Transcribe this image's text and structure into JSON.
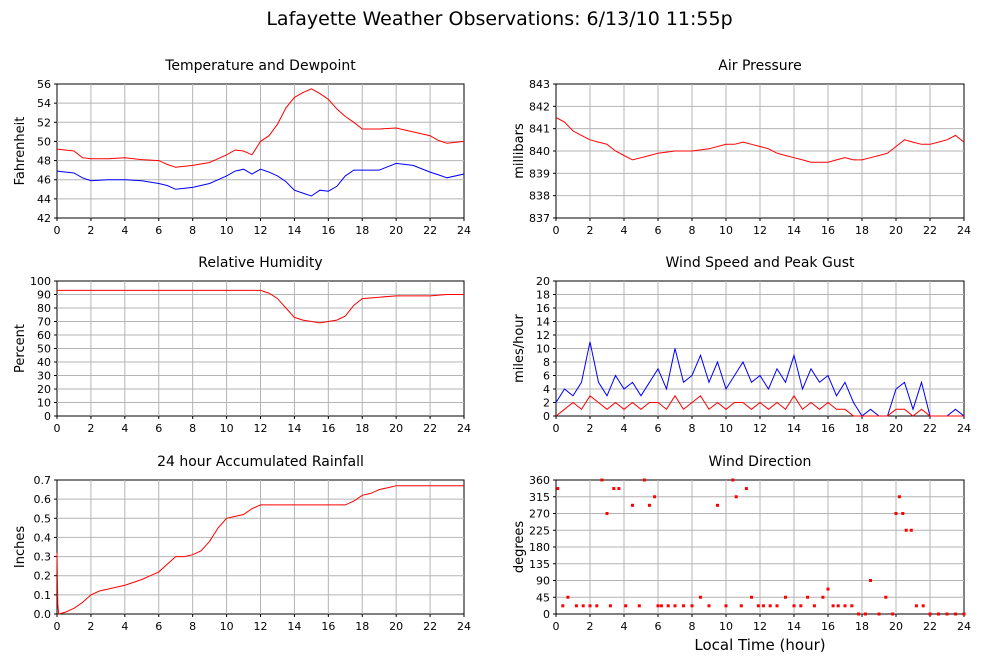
{
  "title": "Lafayette Weather Observations: 6/13/10 11:55p",
  "xlabel": "Local Time (hour)",
  "chart_data": [
    {
      "type": "line",
      "title": "Temperature and Dewpoint",
      "ylabel": "Fahrenheit",
      "xlim": [
        0,
        24
      ],
      "xticks": [
        0,
        2,
        4,
        6,
        8,
        10,
        12,
        14,
        16,
        18,
        20,
        22,
        24
      ],
      "ylim": [
        42,
        56
      ],
      "yticks": [
        42,
        44,
        46,
        48,
        50,
        52,
        54,
        56
      ],
      "grid": true,
      "series": [
        {
          "color": "#ff0000",
          "x": [
            0,
            1,
            1.5,
            2,
            3,
            4,
            5,
            6,
            6.5,
            7,
            8,
            9,
            9.5,
            10,
            10.5,
            11,
            11.5,
            12,
            12.5,
            13,
            13.5,
            14,
            14.5,
            15,
            15.5,
            16,
            16.5,
            17,
            17.5,
            18,
            19,
            20,
            21,
            22,
            22.5,
            23,
            24
          ],
          "y": [
            49.2,
            49.0,
            48.3,
            48.2,
            48.2,
            48.3,
            48.1,
            48.0,
            47.6,
            47.3,
            47.5,
            47.8,
            48.2,
            48.6,
            49.1,
            49.0,
            48.6,
            50.0,
            50.6,
            51.8,
            53.5,
            54.6,
            55.1,
            55.5,
            55.0,
            54.4,
            53.4,
            52.6,
            52.0,
            51.3,
            51.3,
            51.4,
            51.0,
            50.6,
            50.1,
            49.8,
            50.0
          ]
        },
        {
          "color": "#0000ff",
          "x": [
            0,
            1,
            1.5,
            2,
            3,
            4,
            5,
            6,
            6.5,
            7,
            8,
            9,
            9.5,
            10,
            10.5,
            11,
            11.5,
            12,
            12.5,
            13,
            13.5,
            14,
            14.5,
            15,
            15.5,
            16,
            16.5,
            17,
            17.5,
            18,
            19,
            20,
            21,
            22,
            22.5,
            23,
            24
          ],
          "y": [
            46.9,
            46.7,
            46.2,
            45.9,
            46.0,
            46.0,
            45.9,
            45.6,
            45.4,
            45.0,
            45.2,
            45.6,
            46.0,
            46.4,
            46.9,
            47.1,
            46.6,
            47.1,
            46.8,
            46.4,
            45.8,
            44.9,
            44.6,
            44.3,
            44.9,
            44.8,
            45.3,
            46.4,
            47.0,
            47.0,
            47.0,
            47.7,
            47.5,
            46.8,
            46.5,
            46.2,
            46.6
          ]
        }
      ]
    },
    {
      "type": "line",
      "title": "Air Pressure",
      "ylabel": "millibars",
      "xlim": [
        0,
        24
      ],
      "xticks": [
        0,
        2,
        4,
        6,
        8,
        10,
        12,
        14,
        16,
        18,
        20,
        22,
        24
      ],
      "ylim": [
        837,
        843
      ],
      "yticks": [
        837,
        838,
        839,
        840,
        841,
        842,
        843
      ],
      "grid": true,
      "series": [
        {
          "color": "#ff0000",
          "x": [
            0,
            0.5,
            1,
            1.5,
            2,
            2.5,
            3,
            3.5,
            4,
            4.5,
            5,
            5.5,
            6,
            7,
            8,
            9,
            10,
            10.5,
            11,
            11.5,
            12,
            12.5,
            13,
            13.5,
            14,
            14.5,
            15,
            15.5,
            16,
            16.5,
            17,
            17.5,
            18,
            18.5,
            19,
            19.5,
            20,
            20.5,
            21,
            21.5,
            22,
            22.5,
            23,
            23.5,
            24
          ],
          "y": [
            841.5,
            841.3,
            840.9,
            840.7,
            840.5,
            840.4,
            840.3,
            840.0,
            839.8,
            839.6,
            839.7,
            839.8,
            839.9,
            840.0,
            840.0,
            840.1,
            840.3,
            840.3,
            840.4,
            840.3,
            840.2,
            840.1,
            839.9,
            839.8,
            839.7,
            839.6,
            839.5,
            839.5,
            839.5,
            839.6,
            839.7,
            839.6,
            839.6,
            839.7,
            839.8,
            839.9,
            840.2,
            840.5,
            840.4,
            840.3,
            840.3,
            840.4,
            840.5,
            840.7,
            840.4
          ]
        }
      ]
    },
    {
      "type": "line",
      "title": "Relative Humidity",
      "ylabel": "Percent",
      "xlim": [
        0,
        24
      ],
      "xticks": [
        0,
        2,
        4,
        6,
        8,
        10,
        12,
        14,
        16,
        18,
        20,
        22,
        24
      ],
      "ylim": [
        0,
        100
      ],
      "yticks": [
        0,
        10,
        20,
        30,
        40,
        50,
        60,
        70,
        80,
        90,
        100
      ],
      "grid": true,
      "series": [
        {
          "color": "#ff0000",
          "x": [
            0,
            2,
            4,
            6,
            7,
            8,
            9,
            10,
            11,
            12,
            12.5,
            13,
            13.5,
            14,
            14.5,
            15,
            15.5,
            16,
            16.5,
            17,
            17.5,
            18,
            19,
            20,
            21,
            22,
            23,
            24
          ],
          "y": [
            93,
            93,
            93,
            93,
            93,
            93,
            93,
            93,
            93,
            93,
            91,
            87,
            80,
            73,
            71,
            70,
            69,
            70,
            71,
            74,
            82,
            87,
            88,
            89,
            89,
            89,
            90,
            90
          ]
        }
      ]
    },
    {
      "type": "line",
      "title": "Wind Speed and Peak Gust",
      "ylabel": "miles/hour",
      "xlim": [
        0,
        24
      ],
      "xticks": [
        0,
        2,
        4,
        6,
        8,
        10,
        12,
        14,
        16,
        18,
        20,
        22,
        24
      ],
      "ylim": [
        0,
        20
      ],
      "yticks": [
        0,
        2,
        4,
        6,
        8,
        10,
        12,
        14,
        16,
        18,
        20
      ],
      "grid": true,
      "series": [
        {
          "color": "#0000ff",
          "x": [
            0,
            0.5,
            1,
            1.5,
            2,
            2.5,
            3,
            3.5,
            4,
            4.5,
            5,
            5.5,
            6,
            6.5,
            7,
            7.5,
            8,
            8.5,
            9,
            9.5,
            10,
            10.5,
            11,
            11.5,
            12,
            12.5,
            13,
            13.5,
            14,
            14.5,
            15,
            15.5,
            16,
            16.5,
            17,
            17.5,
            18,
            18.5,
            19,
            19.5,
            20,
            20.5,
            21,
            21.5,
            22,
            22.5,
            23,
            23.5,
            24
          ],
          "y": [
            2,
            4,
            3,
            5,
            11,
            5,
            3,
            6,
            4,
            5,
            3,
            5,
            7,
            4,
            10,
            5,
            6,
            9,
            5,
            8,
            4,
            6,
            8,
            5,
            6,
            4,
            7,
            5,
            9,
            4,
            7,
            5,
            6,
            3,
            5,
            2,
            0,
            1,
            0,
            0,
            4,
            5,
            1,
            5,
            0,
            0,
            0,
            1,
            0
          ]
        },
        {
          "color": "#ff0000",
          "x": [
            0,
            0.5,
            1,
            1.5,
            2,
            2.5,
            3,
            3.5,
            4,
            4.5,
            5,
            5.5,
            6,
            6.5,
            7,
            7.5,
            8,
            8.5,
            9,
            9.5,
            10,
            10.5,
            11,
            11.5,
            12,
            12.5,
            13,
            13.5,
            14,
            14.5,
            15,
            15.5,
            16,
            16.5,
            17,
            17.5,
            18,
            18.5,
            19,
            19.5,
            20,
            20.5,
            21,
            21.5,
            22,
            22.5,
            23,
            23.5,
            24
          ],
          "y": [
            0,
            1,
            2,
            1,
            3,
            2,
            1,
            2,
            1,
            2,
            1,
            2,
            2,
            1,
            3,
            1,
            2,
            3,
            1,
            2,
            1,
            2,
            2,
            1,
            2,
            1,
            2,
            1,
            3,
            1,
            2,
            1,
            2,
            1,
            1,
            0,
            0,
            0,
            0,
            0,
            1,
            1,
            0,
            1,
            0,
            0,
            0,
            0,
            0
          ]
        }
      ]
    },
    {
      "type": "line",
      "title": "24 hour Accumulated Rainfall",
      "ylabel": "Inches",
      "xlim": [
        0,
        24
      ],
      "xticks": [
        0,
        2,
        4,
        6,
        8,
        10,
        12,
        14,
        16,
        18,
        20,
        22,
        24
      ],
      "ylim": [
        0.0,
        0.7
      ],
      "yticks": [
        0.0,
        0.1,
        0.2,
        0.3,
        0.4,
        0.5,
        0.6,
        0.7
      ],
      "grid": true,
      "series": [
        {
          "color": "#ff0000",
          "x": [
            0,
            0.05,
            0.1,
            0.5,
            1,
            1.5,
            2,
            2.5,
            3,
            4,
            5,
            5.5,
            6,
            6.5,
            7,
            7.5,
            8,
            8.5,
            9,
            9.5,
            10,
            10.5,
            11,
            11.5,
            12,
            13,
            14,
            15,
            16,
            17,
            17.5,
            18,
            18.5,
            19,
            19.5,
            20,
            21,
            22,
            23,
            24
          ],
          "y": [
            0.32,
            0.05,
            0.0,
            0.01,
            0.03,
            0.06,
            0.1,
            0.12,
            0.13,
            0.15,
            0.18,
            0.2,
            0.22,
            0.26,
            0.3,
            0.3,
            0.31,
            0.33,
            0.38,
            0.45,
            0.5,
            0.51,
            0.52,
            0.55,
            0.57,
            0.57,
            0.57,
            0.57,
            0.57,
            0.57,
            0.59,
            0.62,
            0.63,
            0.65,
            0.66,
            0.67,
            0.67,
            0.67,
            0.67,
            0.67
          ]
        }
      ]
    },
    {
      "type": "scatter",
      "title": "Wind Direction",
      "ylabel": "degrees",
      "xlim": [
        0,
        24
      ],
      "xticks": [
        0,
        2,
        4,
        6,
        8,
        10,
        12,
        14,
        16,
        18,
        20,
        22,
        24
      ],
      "ylim": [
        0,
        360
      ],
      "yticks": [
        0,
        45,
        90,
        135,
        180,
        225,
        270,
        315,
        360
      ],
      "grid": true,
      "series": [
        {
          "color": "#ff0000",
          "x": [
            0.1,
            0.4,
            0.7,
            1.2,
            1.6,
            2.0,
            2.4,
            2.7,
            3.0,
            3.2,
            3.4,
            3.7,
            4.1,
            4.5,
            4.9,
            5.2,
            5.5,
            5.8,
            6.0,
            6.2,
            6.6,
            7.0,
            7.5,
            8.0,
            8.5,
            9.0,
            9.5,
            10.0,
            10.4,
            10.6,
            10.9,
            11.2,
            11.5,
            11.9,
            12.2,
            12.6,
            13.0,
            13.5,
            14.0,
            14.4,
            14.8,
            15.2,
            15.7,
            16.0,
            16.3,
            16.6,
            17.0,
            17.4,
            17.8,
            18.2,
            18.5,
            19.0,
            19.4,
            19.8,
            20.0,
            20.2,
            20.4,
            20.6,
            20.9,
            21.2,
            21.6,
            22.0,
            22.5,
            23.0,
            23.5,
            24.0
          ],
          "y": [
            337,
            22,
            45,
            22,
            22,
            22,
            22,
            360,
            270,
            22,
            337,
            337,
            22,
            292,
            22,
            360,
            292,
            315,
            22,
            22,
            22,
            22,
            22,
            22,
            45,
            22,
            292,
            22,
            360,
            315,
            22,
            337,
            45,
            22,
            22,
            22,
            22,
            45,
            22,
            22,
            45,
            22,
            45,
            67,
            22,
            22,
            22,
            22,
            0,
            0,
            90,
            0,
            45,
            0,
            270,
            315,
            270,
            225,
            225,
            22,
            22,
            0,
            0,
            0,
            0,
            0
          ]
        }
      ]
    }
  ]
}
